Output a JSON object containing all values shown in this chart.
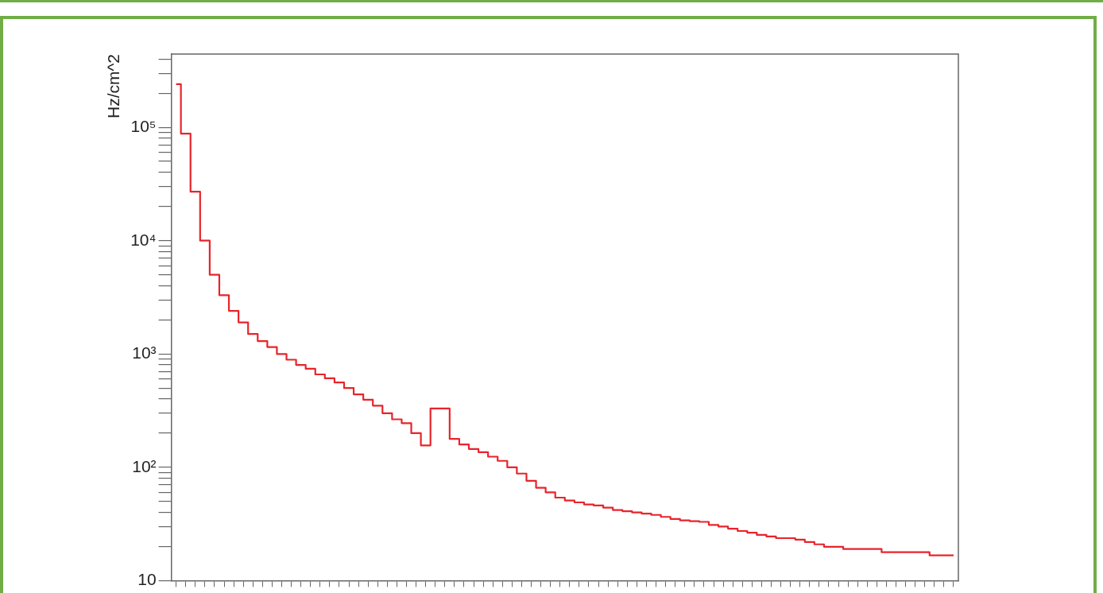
{
  "chart_data": {
    "type": "step",
    "ylabel": "Hz/cm^2",
    "categories": [
      null,
      null,
      null,
      null,
      null,
      null,
      null,
      null,
      null,
      null,
      null,
      null,
      null,
      null,
      null,
      null,
      null,
      null,
      null,
      null,
      null,
      null,
      null,
      null,
      null,
      null,
      null,
      null,
      null,
      null,
      null,
      null,
      null,
      null,
      null,
      null,
      null,
      null,
      null,
      null,
      null,
      null,
      null,
      null,
      null,
      null,
      null,
      null,
      null,
      null,
      null,
      null,
      null,
      null,
      null,
      null,
      null,
      null,
      null,
      null,
      null,
      null,
      null,
      null,
      null,
      null,
      null,
      null,
      null,
      null,
      null,
      null,
      null,
      null,
      null,
      null,
      null,
      null,
      null,
      null,
      null,
      null
    ],
    "series": [
      {
        "color": "#e8242b",
        "values": [
          240000,
          88000,
          27000,
          10000,
          5000,
          3300,
          2400,
          1900,
          1500,
          1300,
          1150,
          1000,
          890,
          800,
          740,
          660,
          610,
          560,
          500,
          440,
          395,
          350,
          300,
          265,
          245,
          200,
          156,
          330,
          330,
          178,
          159,
          145,
          136,
          124,
          114,
          100,
          88,
          76,
          66,
          60,
          54,
          51,
          49,
          47,
          46,
          44,
          42,
          41,
          40,
          39,
          38,
          36.5,
          35,
          34,
          33.5,
          33,
          31,
          30,
          28.7,
          27.4,
          26.5,
          25.3,
          24.5,
          23.7,
          23.7,
          23,
          21.9,
          20.9,
          19.9,
          19.9,
          19,
          19,
          19,
          19,
          17.8,
          17.8,
          17.8,
          17.8,
          17.8,
          16.7,
          16.7,
          16.7
        ]
      }
    ],
    "log": true,
    "ylim": [
      10,
      443000
    ],
    "yticks": [
      {
        "value": 10,
        "label": "10"
      },
      {
        "value": 20,
        "label": null
      },
      {
        "value": 30,
        "label": null
      },
      {
        "value": 40,
        "label": null
      },
      {
        "value": 50,
        "label": null
      },
      {
        "value": 60,
        "label": null
      },
      {
        "value": 70,
        "label": null
      },
      {
        "value": 80,
        "label": null
      },
      {
        "value": 90,
        "label": null
      },
      {
        "value": 100,
        "label": "10²"
      },
      {
        "value": 200,
        "label": null
      },
      {
        "value": 300,
        "label": null
      },
      {
        "value": 400,
        "label": null
      },
      {
        "value": 500,
        "label": null
      },
      {
        "value": 600,
        "label": null
      },
      {
        "value": 700,
        "label": null
      },
      {
        "value": 800,
        "label": null
      },
      {
        "value": 900,
        "label": null
      },
      {
        "value": 1000,
        "label": "10³"
      },
      {
        "value": 2000,
        "label": null
      },
      {
        "value": 3000,
        "label": null
      },
      {
        "value": 4000,
        "label": null
      },
      {
        "value": 5000,
        "label": null
      },
      {
        "value": 6000,
        "label": null
      },
      {
        "value": 7000,
        "label": null
      },
      {
        "value": 8000,
        "label": null
      },
      {
        "value": 9000,
        "label": null
      },
      {
        "value": 10000,
        "label": "10⁴"
      },
      {
        "value": 20000,
        "label": null
      },
      {
        "value": 30000,
        "label": null
      },
      {
        "value": 40000,
        "label": null
      },
      {
        "value": 50000,
        "label": null
      },
      {
        "value": 60000,
        "label": null
      },
      {
        "value": 70000,
        "label": null
      },
      {
        "value": 80000,
        "label": null
      },
      {
        "value": 90000,
        "label": null
      },
      {
        "value": 100000,
        "label": "10⁵"
      },
      {
        "value": 200000,
        "label": null
      },
      {
        "value": 300000,
        "label": null
      },
      {
        "value": 400000,
        "label": null
      }
    ],
    "grid": false,
    "legend": false,
    "tick_labels": "y"
  }
}
